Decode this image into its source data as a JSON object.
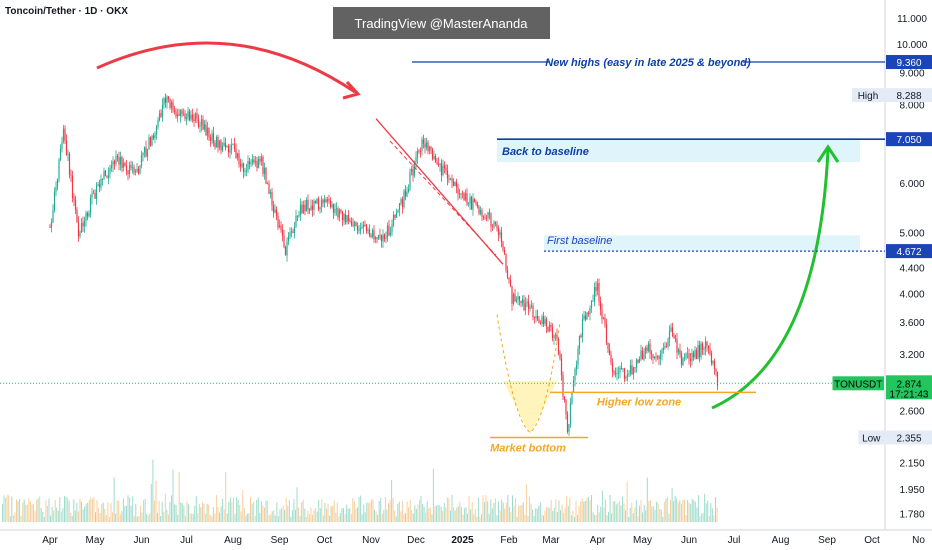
{
  "header": {
    "symbol_line": "Toncoin/Tether · 1D · OKX",
    "watermark": "TradingView @MasterAnanda"
  },
  "chart_data": {
    "type": "candlestick",
    "scale": "log",
    "ylim": [
      1.72,
      11.5
    ],
    "y_ticks": [
      "11.000",
      "10.000",
      "9.000",
      "8.000",
      "6.000",
      "5.000",
      "4.400",
      "4.000",
      "3.600",
      "3.200",
      "2.600",
      "2.150",
      "1.950",
      "1.780"
    ],
    "x_labels": [
      "Apr",
      "May",
      "Jun",
      "Jul",
      "Aug",
      "Sep",
      "Oct",
      "Nov",
      "Dec",
      "2025",
      "Feb",
      "Mar",
      "Apr",
      "May",
      "Jun",
      "Jul",
      "Aug",
      "Sep",
      "Oct",
      "No"
    ],
    "price_path": [
      {
        "date": "2024-04-01",
        "price": 5.1
      },
      {
        "date": "2024-04-10",
        "price": 7.3
      },
      {
        "date": "2024-04-20",
        "price": 5.0
      },
      {
        "date": "2024-05-01",
        "price": 5.8
      },
      {
        "date": "2024-05-15",
        "price": 6.6
      },
      {
        "date": "2024-05-28",
        "price": 6.2
      },
      {
        "date": "2024-06-12",
        "price": 7.5
      },
      {
        "date": "2024-06-16",
        "price": 8.2
      },
      {
        "date": "2024-06-28",
        "price": 7.6
      },
      {
        "date": "2024-07-05",
        "price": 7.7
      },
      {
        "date": "2024-07-20",
        "price": 7.0
      },
      {
        "date": "2024-08-01",
        "price": 6.8
      },
      {
        "date": "2024-08-08",
        "price": 6.3
      },
      {
        "date": "2024-08-20",
        "price": 6.5
      },
      {
        "date": "2024-08-28",
        "price": 5.5
      },
      {
        "date": "2024-09-05",
        "price": 4.7
      },
      {
        "date": "2024-09-15",
        "price": 5.5
      },
      {
        "date": "2024-10-01",
        "price": 5.6
      },
      {
        "date": "2024-10-15",
        "price": 5.3
      },
      {
        "date": "2024-10-30",
        "price": 5.0
      },
      {
        "date": "2024-11-10",
        "price": 4.9
      },
      {
        "date": "2024-11-22",
        "price": 5.6
      },
      {
        "date": "2024-12-05",
        "price": 7.0
      },
      {
        "date": "2024-12-18",
        "price": 6.3
      },
      {
        "date": "2025-01-01",
        "price": 5.7
      },
      {
        "date": "2025-01-15",
        "price": 5.4
      },
      {
        "date": "2025-01-27",
        "price": 4.9
      },
      {
        "date": "2025-02-03",
        "price": 3.9
      },
      {
        "date": "2025-02-15",
        "price": 3.8
      },
      {
        "date": "2025-03-05",
        "price": 3.4
      },
      {
        "date": "2025-03-12",
        "price": 2.4
      },
      {
        "date": "2025-03-17",
        "price": 3.0
      },
      {
        "date": "2025-03-22",
        "price": 3.6
      },
      {
        "date": "2025-04-01",
        "price": 4.1
      },
      {
        "date": "2025-04-07",
        "price": 3.4
      },
      {
        "date": "2025-04-12",
        "price": 2.95
      },
      {
        "date": "2025-04-22",
        "price": 3.0
      },
      {
        "date": "2025-05-05",
        "price": 3.3
      },
      {
        "date": "2025-05-12",
        "price": 3.1
      },
      {
        "date": "2025-05-20",
        "price": 3.5
      },
      {
        "date": "2025-05-28",
        "price": 3.1
      },
      {
        "date": "2025-06-05",
        "price": 3.2
      },
      {
        "date": "2025-06-12",
        "price": 3.3
      },
      {
        "date": "2025-06-17",
        "price": 3.05
      },
      {
        "date": "2025-06-20",
        "price": 2.874
      }
    ],
    "volume": {
      "note": "relative daily volume bars (green/orange) along the bottom of the chart"
    },
    "levels": [
      {
        "price": 9.36,
        "label": "New highs (easy in late 2025 & beyond)",
        "color": "#0d3ea6"
      },
      {
        "price": 7.05,
        "label": "Back to baseline",
        "color": "#0d3ea6"
      },
      {
        "price": 4.672,
        "label": "First baseline",
        "color": "#1e40c4"
      }
    ],
    "zones": [
      {
        "price": 2.78,
        "label": "Higher low zone",
        "color": "#f5a623"
      },
      {
        "price": 2.355,
        "label": "Market bottom",
        "color": "#f5a623"
      }
    ],
    "price_tags": [
      {
        "price": 9.36,
        "text": "9.360",
        "bg": "#1a44b8",
        "fg": "#ffffff"
      },
      {
        "price": 8.288,
        "label": "High",
        "text": "8.288",
        "bg": "#e3ecf6",
        "fg": "#131722"
      },
      {
        "price": 7.05,
        "text": "7.050",
        "bg": "#1a44b8",
        "fg": "#ffffff"
      },
      {
        "price": 4.672,
        "text": "4.672",
        "bg": "#1a44b8",
        "fg": "#ffffff"
      },
      {
        "price": 2.874,
        "label": "TONUSDT",
        "text": "2.874",
        "sub": "17:21:43",
        "bg": "#22c55e",
        "fg": "#000000"
      },
      {
        "price": 2.355,
        "label": "Low",
        "text": "2.355",
        "bg": "#e3ecf6",
        "fg": "#131722"
      }
    ],
    "colors": {
      "up": "#22ab94",
      "down": "#f23645",
      "arc_red": "#ee3a45",
      "arc_green": "#22c02f",
      "level_blue": "#0d3ea6",
      "zone_orange": "#f5a623"
    }
  }
}
